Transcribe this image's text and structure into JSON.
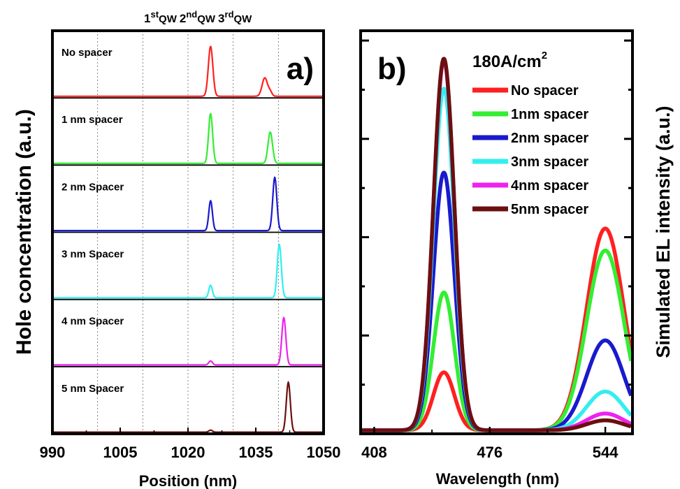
{
  "chart_data": [
    {
      "type": "line",
      "panel_label": "a)",
      "qw_labels": [
        {
          "base": "1",
          "sup": "st",
          "tail": "QW"
        },
        {
          "base": "2",
          "sup": "nd",
          "tail": "QW"
        },
        {
          "base": "3",
          "sup": "rd",
          "tail": "QW"
        }
      ],
      "xlabel": "Position (nm)",
      "ylabel": "Hole concentration (a.u.)",
      "xlim": [
        990,
        1050
      ],
      "xticks": [
        990,
        1005,
        1020,
        1035,
        1050
      ],
      "minor_xticks": [
        997.5,
        1012.5,
        1027.5,
        1042.5
      ],
      "grid_x": [
        1000,
        1010,
        1020,
        1030,
        1040
      ],
      "stacked": true,
      "series": [
        {
          "name": "No spacer",
          "color": "#ff2020",
          "peaks": [
            [
              1025.0,
              1.0,
              0.5
            ],
            [
              1037.0,
              0.37,
              0.6
            ],
            [
              1038.2,
              0.08,
              0.4
            ]
          ]
        },
        {
          "name": "1 nm spacer",
          "color": "#33ee33",
          "peaks": [
            [
              1025.0,
              1.0,
              0.45
            ],
            [
              1038.2,
              0.63,
              0.5
            ]
          ]
        },
        {
          "name": "2 nm Spacer",
          "color": "#1a1acc",
          "peaks": [
            [
              1025.0,
              0.6,
              0.4
            ],
            [
              1039.2,
              1.07,
              0.45
            ]
          ]
        },
        {
          "name": "3 nm Spacer",
          "color": "#33eeee",
          "peaks": [
            [
              1025.0,
              0.25,
              0.4
            ],
            [
              1040.2,
              1.07,
              0.45
            ]
          ]
        },
        {
          "name": "4 nm Spacer",
          "color": "#ee22ee",
          "peaks": [
            [
              1025.0,
              0.08,
              0.4
            ],
            [
              1041.2,
              0.95,
              0.45
            ]
          ]
        },
        {
          "name": "5 nm Spacer",
          "color": "#6b0f0f",
          "peaks": [
            [
              1025.0,
              0.04,
              0.4
            ],
            [
              1042.2,
              1.0,
              0.45
            ]
          ]
        }
      ]
    },
    {
      "type": "line",
      "panel_label": "b)",
      "current_density": "180A/cm",
      "current_density_exp": "2",
      "xlabel": "Wavelength (nm)",
      "ylabel": "Simulated EL intensity (a.u.)",
      "xlim": [
        400,
        560
      ],
      "ylim": [
        0,
        1.0
      ],
      "xticks": [
        408,
        476,
        544
      ],
      "minor_xticks": [
        442,
        510
      ],
      "ytick_count": 8,
      "legend_position": "top-right",
      "series": [
        {
          "name": "No spacer",
          "color": "#ff2020",
          "blue_peak": [
            449,
            0.145,
            6.2
          ],
          "green_peak": [
            544,
            0.505,
            11
          ]
        },
        {
          "name": "1nm spacer",
          "color": "#33ee33",
          "blue_peak": [
            449,
            0.345,
            6.2
          ],
          "green_peak": [
            544,
            0.45,
            11
          ]
        },
        {
          "name": "2nm spacer",
          "color": "#1a1acc",
          "blue_peak": [
            449,
            0.645,
            6.2
          ],
          "green_peak": [
            544,
            0.225,
            11
          ]
        },
        {
          "name": "3nm spacer",
          "color": "#33eeee",
          "blue_peak": [
            449,
            0.855,
            6.2
          ],
          "green_peak": [
            544,
            0.097,
            11
          ]
        },
        {
          "name": "4nm spacer",
          "color": "#ee22ee",
          "blue_peak": [
            449,
            0.925,
            6.2
          ],
          "green_peak": [
            544,
            0.042,
            11
          ]
        },
        {
          "name": "5nm spacer",
          "color": "#6b0f0f",
          "blue_peak": [
            449,
            0.93,
            6.2
          ],
          "green_peak": [
            544,
            0.025,
            11
          ]
        }
      ]
    }
  ]
}
